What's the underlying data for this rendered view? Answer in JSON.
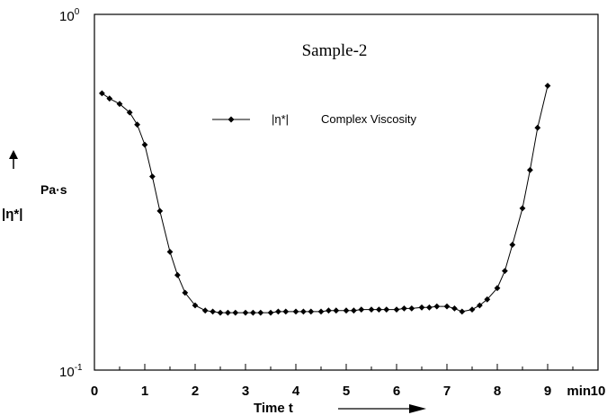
{
  "chart_data": {
    "type": "line",
    "title": "Sample-2",
    "xlabel": "Time t",
    "x_unit": "min",
    "ylabel": "|η*|",
    "y_unit": "Pa·s",
    "y_scale": "log",
    "ylim": [
      0.1,
      1
    ],
    "xlim": [
      0,
      10
    ],
    "x_ticks": [
      0,
      1,
      2,
      3,
      4,
      5,
      6,
      7,
      8,
      9,
      10
    ],
    "x_tick_labels": [
      "0",
      "1",
      "2",
      "3",
      "4",
      "5",
      "6",
      "7",
      "8",
      "9",
      "min",
      "10"
    ],
    "y_tick_labels": {
      "top": {
        "base": "10",
        "exp": "0"
      },
      "bottom": {
        "base": "10",
        "exp": "-1"
      }
    },
    "grid": false,
    "legend_position": "top-center",
    "legend_symbol": "|η*|",
    "legend_text": "Complex Viscosity",
    "colors": {
      "line": "#000000",
      "marker": "#000000",
      "axis": "#000000"
    },
    "series": [
      {
        "name": "|η*|  Complex Viscosity",
        "x": [
          0.15,
          0.3,
          0.5,
          0.7,
          0.85,
          1.0,
          1.15,
          1.3,
          1.5,
          1.65,
          1.8,
          2.0,
          2.2,
          2.35,
          2.5,
          2.65,
          2.8,
          3.0,
          3.15,
          3.3,
          3.5,
          3.65,
          3.8,
          4.0,
          4.15,
          4.3,
          4.5,
          4.65,
          4.8,
          5.0,
          5.15,
          5.3,
          5.5,
          5.65,
          5.8,
          6.0,
          6.15,
          6.3,
          6.5,
          6.65,
          6.8,
          7.0,
          7.15,
          7.3,
          7.5,
          7.65,
          7.8,
          8.0,
          8.15,
          8.3,
          8.5,
          8.65,
          8.8,
          9.0
        ],
        "values": [
          0.6,
          0.58,
          0.56,
          0.53,
          0.49,
          0.43,
          0.35,
          0.28,
          0.215,
          0.185,
          0.165,
          0.152,
          0.147,
          0.146,
          0.145,
          0.145,
          0.145,
          0.145,
          0.145,
          0.145,
          0.145,
          0.146,
          0.146,
          0.146,
          0.146,
          0.146,
          0.146,
          0.147,
          0.147,
          0.147,
          0.147,
          0.148,
          0.148,
          0.148,
          0.148,
          0.148,
          0.149,
          0.149,
          0.15,
          0.15,
          0.151,
          0.151,
          0.149,
          0.146,
          0.148,
          0.152,
          0.158,
          0.17,
          0.19,
          0.225,
          0.285,
          0.365,
          0.48,
          0.63
        ]
      }
    ]
  },
  "arrow_label": "→"
}
